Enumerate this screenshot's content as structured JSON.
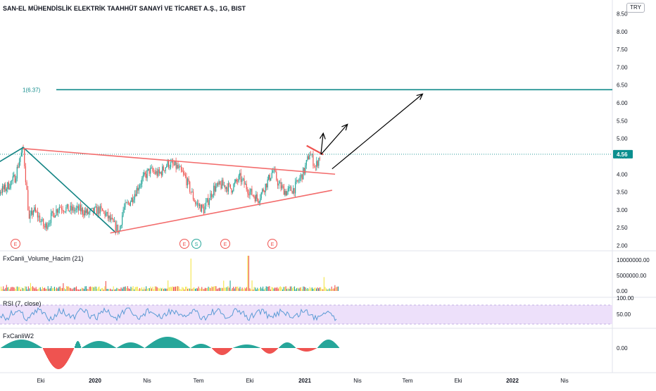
{
  "header": {
    "title": "SAN-EL MÜHENDİSLİK ELEKTRİK TAAHHÜT SANAYİ VE TİCARET A.Ş., 1G, BIST",
    "currency_badge": "TRY"
  },
  "colors": {
    "up": "#26a69a",
    "down": "#ef5350",
    "trendline": "#f36c6c",
    "teal_line": "#138484",
    "level_line": "#0f8a8a",
    "arrow": "#000000",
    "price_badge": "#0b8f8f",
    "rsi_band": "#ede0fa",
    "rsi_line": "#5b9bd5",
    "vol_yellow": "#f3e54a"
  },
  "chart_data": [
    {
      "type": "line",
      "pane": "price",
      "y_ticks": [
        "8.50",
        "8.00",
        "7.50",
        "7.00",
        "6.50",
        "6.00",
        "5.50",
        "5.00",
        "4.50",
        "4.00",
        "3.50",
        "3.00",
        "2.50",
        "2.00"
      ],
      "ylim": [
        1.95,
        8.55
      ],
      "current_price": 4.56,
      "current_price_label": "4.56",
      "level": {
        "label": "1(6.37)",
        "value": 6.37
      },
      "x_ticks": [
        "Eki",
        "2020",
        "Nis",
        "Tem",
        "Eki",
        "2021",
        "Nis",
        "Tem",
        "Eki",
        "2022",
        "Nis"
      ],
      "event_markers": [
        "E",
        "E",
        "S",
        "E",
        "E"
      ],
      "price_path": [
        {
          "x": "2019-08",
          "y": 2.9
        },
        {
          "x": "2019-08-15",
          "y": 3.2
        },
        {
          "x": "2019-09",
          "y": 3.5
        },
        {
          "x": "2019-09-15",
          "y": 3.6
        },
        {
          "x": "2019-10",
          "y": 3.9
        },
        {
          "x": "2019-10-10",
          "y": 4.5
        },
        {
          "x": "2019-10-15",
          "y": 4.7
        },
        {
          "x": "2019-10-25",
          "y": 2.7
        },
        {
          "x": "2019-11",
          "y": 3.0
        },
        {
          "x": "2019-11-10",
          "y": 2.8
        },
        {
          "x": "2019-11-20",
          "y": 2.5
        },
        {
          "x": "2019-12",
          "y": 2.8
        },
        {
          "x": "2019-12-15",
          "y": 3.1
        },
        {
          "x": "2020-01",
          "y": 3.0
        },
        {
          "x": "2020-01-20",
          "y": 3.0
        },
        {
          "x": "2020-02",
          "y": 2.9
        },
        {
          "x": "2020-02-20",
          "y": 3.0
        },
        {
          "x": "2020-03",
          "y": 2.9
        },
        {
          "x": "2020-03-15",
          "y": 2.6
        },
        {
          "x": "2020-03-25",
          "y": 2.4
        },
        {
          "x": "2020-04",
          "y": 3.0
        },
        {
          "x": "2020-04-15",
          "y": 3.3
        },
        {
          "x": "2020-05",
          "y": 3.8
        },
        {
          "x": "2020-05-15",
          "y": 4.1
        },
        {
          "x": "2020-06",
          "y": 4.0
        },
        {
          "x": "2020-06-15",
          "y": 4.3
        },
        {
          "x": "2020-07",
          "y": 4.2
        },
        {
          "x": "2020-07-15",
          "y": 3.9
        },
        {
          "x": "2020-08",
          "y": 3.2
        },
        {
          "x": "2020-08-15",
          "y": 3.0
        },
        {
          "x": "2020-09",
          "y": 3.6
        },
        {
          "x": "2020-09-15",
          "y": 3.7
        },
        {
          "x": "2020-10",
          "y": 3.6
        },
        {
          "x": "2020-10-15",
          "y": 3.9
        },
        {
          "x": "2020-11",
          "y": 3.5
        },
        {
          "x": "2020-11-15",
          "y": 3.3
        },
        {
          "x": "2020-12",
          "y": 3.8
        },
        {
          "x": "2020-12-10",
          "y": 4.1
        },
        {
          "x": "2020-12-20",
          "y": 3.7
        },
        {
          "x": "2021-01",
          "y": 3.5
        },
        {
          "x": "2021-01-15",
          "y": 3.6
        },
        {
          "x": "2021-02",
          "y": 4.1
        },
        {
          "x": "2021-02-10",
          "y": 4.6
        },
        {
          "x": "2021-02-20",
          "y": 4.2
        },
        {
          "x": "2021-03",
          "y": 4.6
        }
      ],
      "drawings": {
        "wave": [
          {
            "x": "2019-08",
            "y": 4.0
          },
          {
            "x": "2019-10-15",
            "y": 4.75
          },
          {
            "x": "2020-03-20",
            "y": 2.35
          }
        ],
        "upper_trendline": [
          {
            "x": "2019-10-15",
            "y": 4.72
          },
          {
            "x": "2021-03-25",
            "y": 4.0
          }
        ],
        "lower_trendline": [
          {
            "x": "2020-03-10",
            "y": 2.35
          },
          {
            "x": "2021-03-20",
            "y": 3.55
          }
        ],
        "flag_line": [
          {
            "x": "2021-02-05",
            "y": 4.8
          },
          {
            "x": "2021-03-05",
            "y": 4.55
          }
        ],
        "arrows": [
          [
            {
              "x": "2021-03-01",
              "y": 4.55
            },
            {
              "x": "2021-03-05",
              "y": 5.15
            }
          ],
          [
            {
              "x": "2021-03-01",
              "y": 4.55
            },
            {
              "x": "2021-04-15",
              "y": 5.4
            }
          ],
          [
            {
              "x": "2021-03-20",
              "y": 4.15
            },
            {
              "x": "2021-08-20",
              "y": 6.25
            }
          ]
        ]
      }
    },
    {
      "type": "bar",
      "pane": "volume",
      "title": "FxCanli_Volume_Hacim (21)",
      "y_ticks": [
        "10000000.00",
        "5000000.00",
        "0.00"
      ],
      "ylim": [
        0,
        10000000
      ]
    },
    {
      "type": "line",
      "pane": "rsi",
      "title": "RSI (7, close)",
      "y_ticks": [
        "100.00",
        "50.00"
      ],
      "ylim": [
        30,
        100
      ]
    },
    {
      "type": "area",
      "pane": "oscillator",
      "title": "FxCanliW2",
      "y_ticks": [
        "0.00"
      ]
    }
  ]
}
